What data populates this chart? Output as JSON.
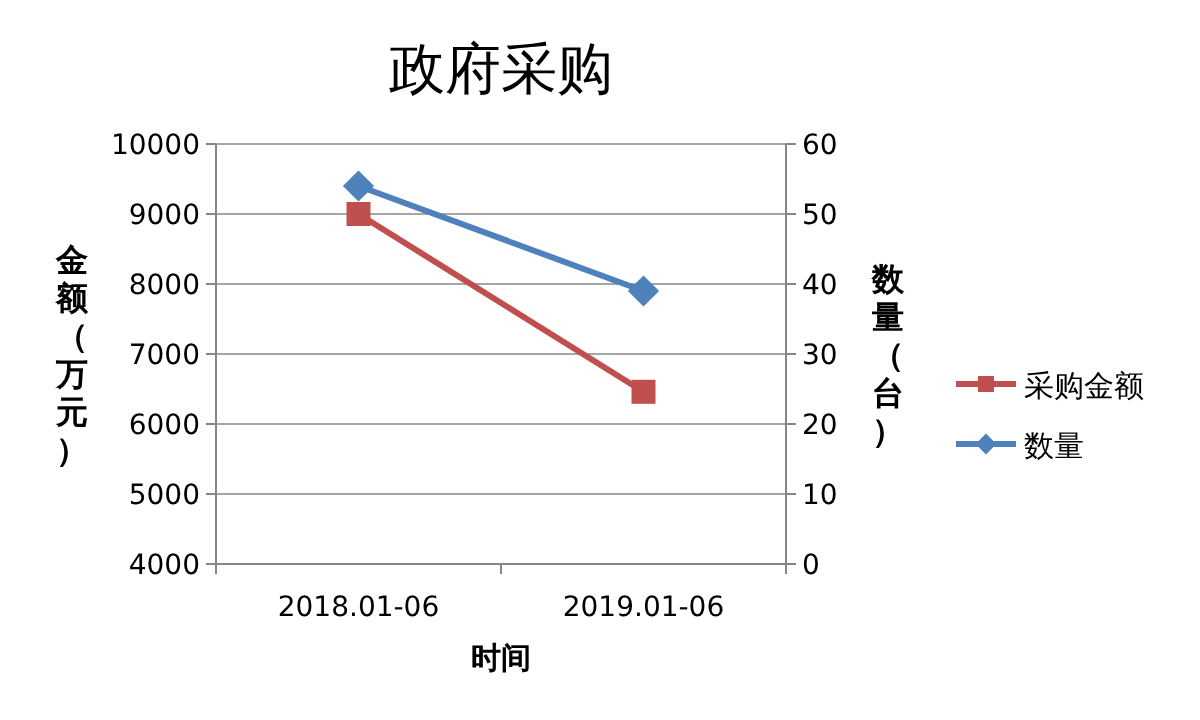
{
  "chart_data": {
    "type": "line",
    "title": "政府采购",
    "xlabel": "时间",
    "ylabel": "金额（万元）",
    "y2label": "数量（台）",
    "categories": [
      "2018.01-06",
      "2019.01-06"
    ],
    "series": [
      {
        "name": "采购金额",
        "color": "#c0504d",
        "values": [
          9000,
          6460
        ],
        "marker": "square"
      },
      {
        "name": "数量",
        "color": "#4f81bd",
        "values": [
          54,
          39
        ],
        "axis": "y2",
        "marker": "diamond"
      }
    ],
    "ylim": [
      4000,
      10000
    ],
    "yticks": [
      4000,
      5000,
      6000,
      7000,
      8000,
      9000,
      10000
    ],
    "y2lim": [
      0,
      60
    ],
    "y2ticks": [
      0,
      10,
      20,
      30,
      40,
      50,
      60
    ],
    "grid": "y",
    "legend": "right"
  }
}
